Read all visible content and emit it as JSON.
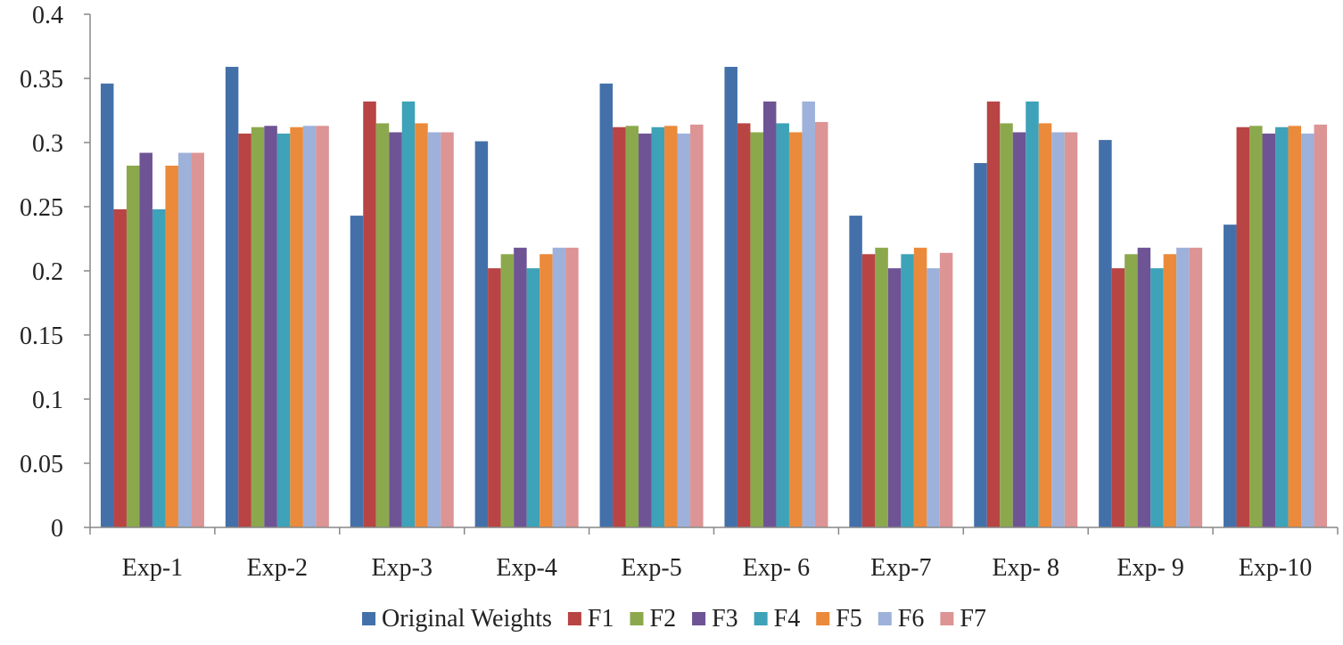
{
  "chart_data": {
    "type": "bar",
    "title": "",
    "xlabel": "",
    "ylabel": "",
    "ylim": [
      0,
      0.4
    ],
    "yticks": [
      "0",
      "0.05",
      "0.1",
      "0.15",
      "0.2",
      "0.25",
      "0.3",
      "0.35",
      "0.4"
    ],
    "ytick_values": [
      0,
      0.05,
      0.1,
      0.15,
      0.2,
      0.25,
      0.3,
      0.35,
      0.4
    ],
    "grid": false,
    "legend_position": "bottom",
    "categories": [
      "Exp-1",
      "Exp-2",
      "Exp-3",
      "Exp-4",
      "Exp-5",
      "Exp- 6",
      "Exp-7",
      "Exp- 8",
      "Exp- 9",
      "Exp-10"
    ],
    "series": [
      {
        "name": "Original Weights",
        "color": "#4470AA",
        "values": [
          0.346,
          0.359,
          0.243,
          0.301,
          0.346,
          0.359,
          0.243,
          0.284,
          0.302,
          0.236
        ]
      },
      {
        "name": "F1",
        "color": "#B84444",
        "values": [
          0.248,
          0.307,
          0.332,
          0.202,
          0.312,
          0.315,
          0.213,
          0.332,
          0.202,
          0.312
        ]
      },
      {
        "name": "F2",
        "color": "#8BA94C",
        "values": [
          0.282,
          0.312,
          0.315,
          0.213,
          0.313,
          0.308,
          0.218,
          0.315,
          0.213,
          0.313
        ]
      },
      {
        "name": "F3",
        "color": "#6E5494",
        "values": [
          0.292,
          0.313,
          0.308,
          0.218,
          0.307,
          0.332,
          0.202,
          0.308,
          0.218,
          0.307
        ]
      },
      {
        "name": "F4",
        "color": "#3EA2B8",
        "values": [
          0.248,
          0.307,
          0.332,
          0.202,
          0.312,
          0.315,
          0.213,
          0.332,
          0.202,
          0.312
        ]
      },
      {
        "name": "F5",
        "color": "#EB8A3A",
        "values": [
          0.282,
          0.312,
          0.315,
          0.213,
          0.313,
          0.308,
          0.218,
          0.315,
          0.213,
          0.313
        ]
      },
      {
        "name": "F6",
        "color": "#9DB1DA",
        "values": [
          0.292,
          0.313,
          0.308,
          0.218,
          0.307,
          0.332,
          0.202,
          0.308,
          0.218,
          0.307
        ]
      },
      {
        "name": "F7",
        "color": "#DC9494",
        "values": [
          0.292,
          0.313,
          0.308,
          0.218,
          0.314,
          0.316,
          0.214,
          0.308,
          0.218,
          0.314
        ]
      }
    ]
  }
}
